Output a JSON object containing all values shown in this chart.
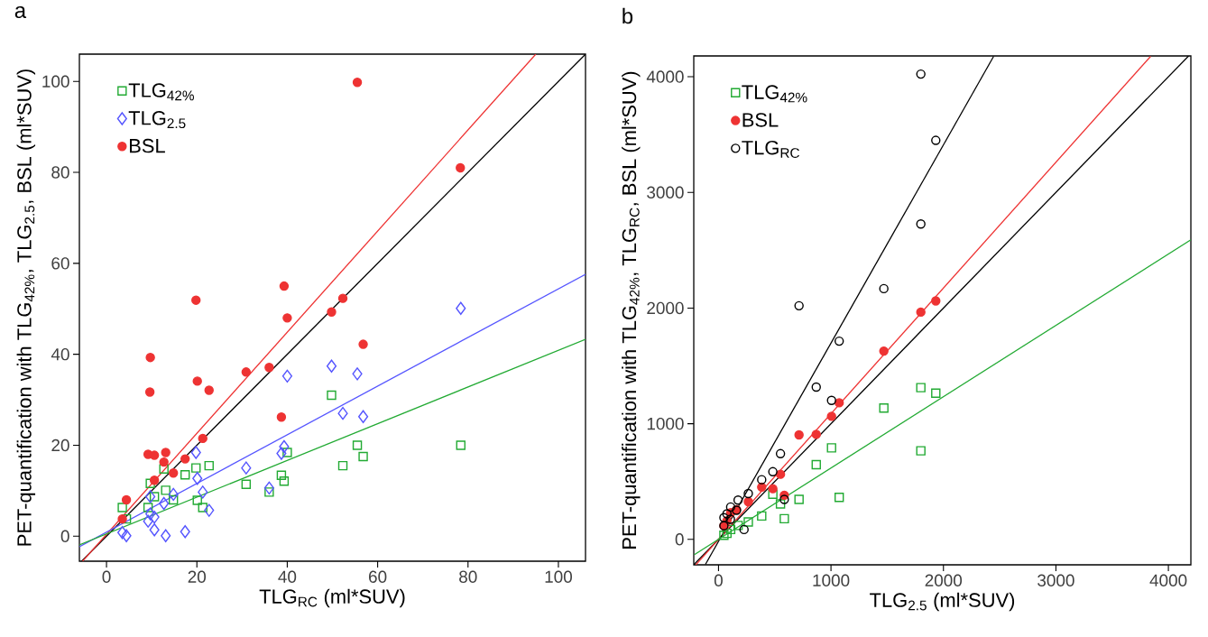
{
  "chart_data": [
    {
      "type": "scatter",
      "title": "a",
      "xlabel": "TLG$_{RC}$ (ml*SUV)",
      "ylabel": "PET-quantification with TLG$_{42%}$, TLG$_{2.5}$, BSL (ml*SUV)",
      "xlim": [
        -6,
        106
      ],
      "ylim": [
        -5.5,
        106
      ],
      "xticks": [
        0,
        20,
        40,
        60,
        80,
        100
      ],
      "yticks": [
        0,
        20,
        40,
        60,
        80,
        100
      ],
      "legend": "top left",
      "series": [
        {
          "name": "TLG$_{42%}$",
          "marker": "square",
          "color": "#22aa33",
          "x": [
            78.4,
            49.8,
            55.5,
            56.8,
            52.3,
            40.0,
            38.7,
            39.3,
            30.9,
            36.0,
            22.7,
            19.8,
            17.4,
            12.7,
            9.7,
            13.1,
            10.6,
            14.8,
            20.1,
            21.3,
            3.5,
            9.2,
            4.4
          ],
          "values": [
            20.0,
            31.0,
            20.0,
            17.5,
            15.5,
            18.4,
            13.4,
            12.1,
            11.4,
            9.7,
            15.5,
            15.0,
            13.5,
            14.8,
            11.6,
            10.1,
            8.7,
            8.0,
            7.9,
            6.3,
            6.3,
            6.3,
            3.8
          ]
        },
        {
          "name": "TLG$_{2.5}$",
          "marker": "diamond",
          "color": "#5555ff",
          "x": [
            78.4,
            49.8,
            55.5,
            40.0,
            52.3,
            56.8,
            39.3,
            38.7,
            19.8,
            30.9,
            20.1,
            36.0,
            21.3,
            14.8,
            9.7,
            12.7,
            22.7,
            9.7,
            10.6,
            9.2,
            3.5,
            4.4,
            10.6,
            13.1,
            17.4
          ],
          "values": [
            50.1,
            37.4,
            35.7,
            35.2,
            27.0,
            26.3,
            19.7,
            18.2,
            18.4,
            15.0,
            12.7,
            10.6,
            9.7,
            9.2,
            8.7,
            7.2,
            5.7,
            4.9,
            4.2,
            3.3,
            0.8,
            0.1,
            1.4,
            0.1,
            1.0
          ]
        },
        {
          "name": "BSL",
          "marker": "dot",
          "color": "#ee3333",
          "x": [
            55.5,
            78.3,
            39.3,
            19.8,
            52.3,
            49.8,
            40.0,
            56.8,
            9.7,
            9.6,
            20.1,
            22.7,
            30.9,
            36.0,
            38.7,
            21.3,
            9.2,
            10.6,
            13.1,
            12.7,
            17.4,
            14.8,
            10.6,
            4.4,
            3.5
          ],
          "values": [
            99.8,
            81.0,
            55.0,
            51.9,
            52.3,
            49.3,
            48.0,
            42.2,
            39.3,
            31.7,
            34.1,
            32.1,
            36.1,
            37.1,
            26.2,
            21.5,
            18.0,
            17.8,
            18.4,
            16.3,
            17.0,
            13.9,
            12.3,
            8.0,
            3.8
          ]
        },
        {
          "type": "line",
          "color": "#000000",
          "x": [
            -5.5,
            106
          ],
          "values": [
            -5.5,
            106
          ]
        },
        {
          "type": "line",
          "color": "#ee3333",
          "x": [
            -5.3,
            95
          ],
          "values": [
            -5.5,
            106
          ]
        },
        {
          "type": "line",
          "color": "#5555ff",
          "x": [
            -6,
            106
          ],
          "values": [
            -2.3,
            57.6
          ]
        },
        {
          "type": "line",
          "color": "#22aa33",
          "x": [
            -6,
            106
          ],
          "values": [
            -1.9,
            43.3
          ]
        }
      ]
    },
    {
      "type": "scatter",
      "title": "b",
      "xlabel": "TLG$_{2.5}$ (ml*SUV)",
      "ylabel": "PET-quantification with TLG$_{42%}$, TLG$_{RC}$, BSL (ml*SUV)",
      "xlim": [
        -220,
        4200
      ],
      "ylim": [
        -220,
        4180
      ],
      "xticks": [
        0,
        1000,
        2000,
        3000,
        4000
      ],
      "yticks": [
        0,
        1000,
        2000,
        3000,
        4000
      ],
      "legend": "top left",
      "series": [
        {
          "name": "TLG$_{42%}$",
          "marker": "square",
          "color": "#22aa33",
          "x": [
            1799,
            1932,
            1470,
            1005,
            869,
            1799,
            1073,
            716,
            483,
            551,
            585,
            384,
            265,
            174,
            108,
            48,
            75
          ],
          "values": [
            1312,
            1264,
            1136,
            791,
            646,
            766,
            363,
            346,
            390,
            307,
            179,
            202,
            151,
            120,
            85,
            35,
            52
          ]
        },
        {
          "name": "BSL",
          "marker": "dot",
          "color": "#ee3333",
          "x": [
            1932,
            1799,
            1470,
            1073,
            1005,
            716,
            869,
            551,
            384,
            483,
            585,
            265,
            160,
            108,
            48,
            75
          ],
          "values": [
            2062,
            1965,
            1628,
            1181,
            1064,
            903,
            908,
            563,
            452,
            438,
            382,
            326,
            257,
            230,
            118,
            160
          ]
        },
        {
          "name": "TLG$_{RC}$",
          "marker": "circle",
          "color": "#000000",
          "x": [
            1799,
            1932,
            1799,
            1470,
            716,
            1073,
            869,
            1005,
            551,
            483,
            384,
            265,
            585,
            174,
            108,
            160,
            75,
            48,
            106,
            227,
            48
          ],
          "values": [
            4023,
            3450,
            2727,
            2168,
            2020,
            1714,
            1317,
            1202,
            741,
            585,
            516,
            396,
            346,
            340,
            280,
            252,
            221,
            188,
            174,
            85,
            118
          ]
        },
        {
          "type": "line",
          "color": "#000000",
          "x": [
            -220,
            4180
          ],
          "values": [
            -220,
            4180
          ]
        },
        {
          "type": "line",
          "color": "#ee3333",
          "x": [
            -202,
            3842
          ],
          "values": [
            -220,
            4176
          ]
        },
        {
          "type": "line",
          "color": "#000000",
          "x": [
            -116,
            2446
          ],
          "values": [
            -216,
            4176
          ]
        },
        {
          "type": "line",
          "color": "#22aa33",
          "x": [
            -215,
            4200
          ],
          "values": [
            -132,
            2590
          ]
        }
      ]
    }
  ]
}
